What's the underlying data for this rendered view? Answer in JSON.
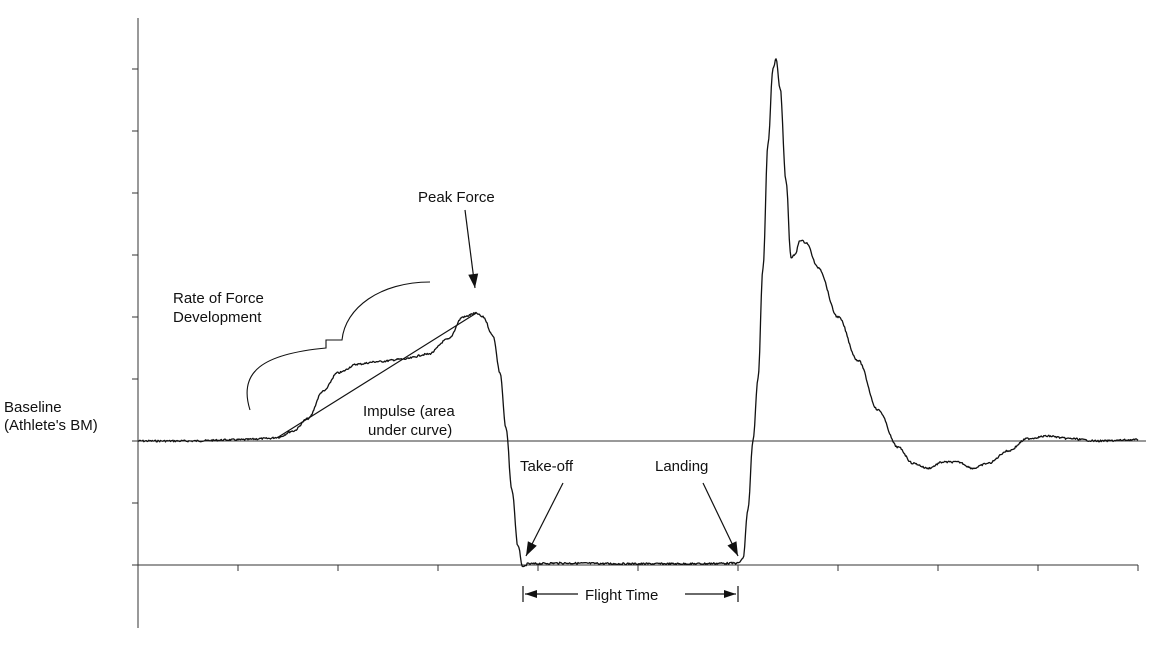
{
  "chart_data": {
    "type": "line",
    "title": "",
    "xlabel": "",
    "ylabel": "",
    "xlim": [
      0,
      10
    ],
    "ylim": [
      -1.5,
      3.8
    ],
    "x_tick_count": 10,
    "y_tick_count": 9,
    "grid": false,
    "colors": {
      "line": "#111111",
      "axis": "#333333",
      "background": "#ffffff"
    },
    "baseline_value": 0,
    "flight_level_value": -1,
    "series": [
      {
        "values_note_free": true,
        "points": [
          [
            0.0,
            0.0
          ],
          [
            0.5,
            0.0
          ],
          [
            1.0,
            0.01
          ],
          [
            1.3,
            0.02
          ],
          [
            1.4,
            0.03
          ],
          [
            1.55,
            0.08
          ],
          [
            1.7,
            0.18
          ],
          [
            1.85,
            0.4
          ],
          [
            2.0,
            0.55
          ],
          [
            2.2,
            0.62
          ],
          [
            2.4,
            0.64
          ],
          [
            2.65,
            0.66
          ],
          [
            2.9,
            0.7
          ],
          [
            3.1,
            0.82
          ],
          [
            3.25,
            1.0
          ],
          [
            3.38,
            1.03
          ],
          [
            3.45,
            1.0
          ],
          [
            3.55,
            0.85
          ],
          [
            3.62,
            0.55
          ],
          [
            3.68,
            0.1
          ],
          [
            3.74,
            -0.4
          ],
          [
            3.8,
            -0.85
          ],
          [
            3.85,
            -1.02
          ],
          [
            3.9,
            -0.99
          ],
          [
            4.2,
            -0.985
          ],
          [
            5.0,
            -0.99
          ],
          [
            5.5,
            -0.99
          ],
          [
            6.0,
            -0.985
          ],
          [
            6.05,
            -0.95
          ],
          [
            6.1,
            -0.55
          ],
          [
            6.15,
            0.0
          ],
          [
            6.2,
            0.5
          ],
          [
            6.25,
            1.4
          ],
          [
            6.3,
            2.4
          ],
          [
            6.35,
            3.0
          ],
          [
            6.38,
            3.08
          ],
          [
            6.42,
            2.85
          ],
          [
            6.48,
            2.1
          ],
          [
            6.53,
            1.48
          ],
          [
            6.57,
            1.5
          ],
          [
            6.62,
            1.62
          ],
          [
            6.68,
            1.6
          ],
          [
            6.8,
            1.4
          ],
          [
            7.0,
            1.0
          ],
          [
            7.2,
            0.65
          ],
          [
            7.4,
            0.25
          ],
          [
            7.6,
            -0.05
          ],
          [
            7.75,
            -0.18
          ],
          [
            7.9,
            -0.22
          ],
          [
            8.05,
            -0.17
          ],
          [
            8.2,
            -0.17
          ],
          [
            8.35,
            -0.22
          ],
          [
            8.5,
            -0.18
          ],
          [
            8.7,
            -0.08
          ],
          [
            8.9,
            0.02
          ],
          [
            9.1,
            0.04
          ],
          [
            9.3,
            0.02
          ],
          [
            9.6,
            0.0
          ],
          [
            10.0,
            0.01
          ]
        ],
        "rfd_line": [
          [
            1.4,
            0.03
          ],
          [
            3.38,
            1.03
          ]
        ]
      }
    ],
    "annotations": {
      "peak_force": "Peak Force",
      "rfd_line1": "Rate of Force",
      "rfd_line2": "Development",
      "baseline_line1": "Baseline",
      "baseline_line2": "(Athlete's BM)",
      "impulse_line1": "Impulse (area",
      "impulse_line2": "under curve)",
      "takeoff": "Take-off",
      "landing": "Landing",
      "flight_time": "Flight Time"
    }
  }
}
